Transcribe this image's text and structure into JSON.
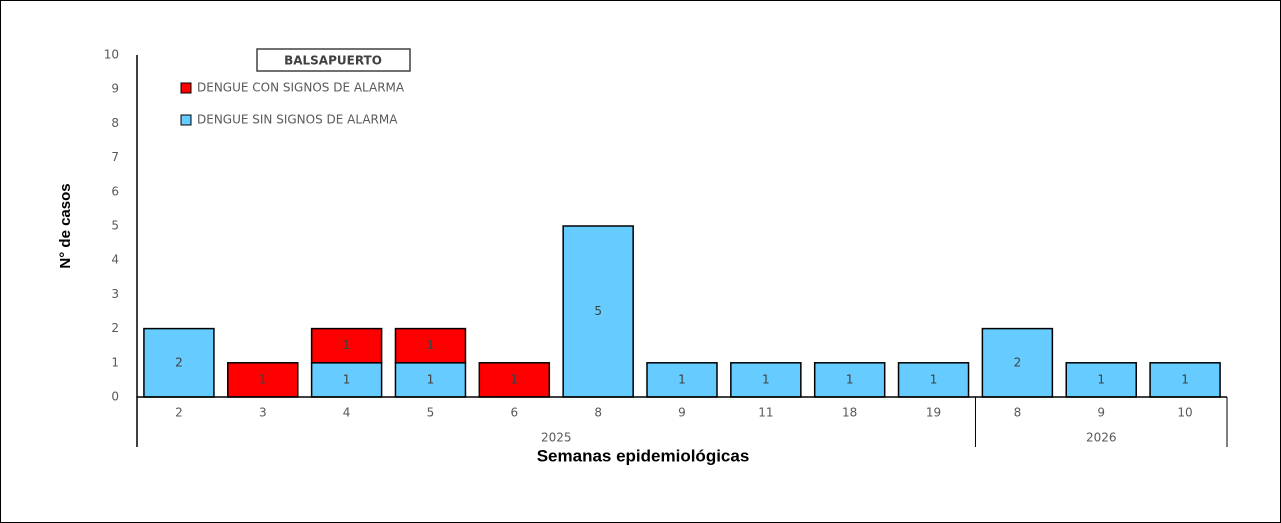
{
  "chart_data": {
    "type": "stacked_bar",
    "title": "BALSAPUERTO",
    "x_label": "Semanas epidemiológicas",
    "y_label": "N° de casos",
    "categories": [
      "2",
      "3",
      "4",
      "5",
      "6",
      "8",
      "9",
      "11",
      "18",
      "19",
      "8",
      "9",
      "10"
    ],
    "groups": [
      {
        "label": "2025",
        "span": 10
      },
      {
        "label": "2026",
        "span": 3
      }
    ],
    "series": [
      {
        "name": "DENGUE SIN SIGNOS DE ALARMA",
        "color": "#66ccff",
        "values": [
          2,
          0,
          1,
          1,
          0,
          5,
          1,
          1,
          1,
          1,
          2,
          1,
          1
        ]
      },
      {
        "name": "DENGUE CON SIGNOS DE ALARMA",
        "color": "#ff0000",
        "values": [
          0,
          1,
          1,
          1,
          1,
          0,
          0,
          0,
          0,
          0,
          0,
          0,
          0
        ]
      }
    ],
    "ylim": [
      0,
      10
    ],
    "yticks": [
      0,
      1,
      2,
      3,
      4,
      5,
      6,
      7,
      8,
      9,
      10
    ],
    "grid": false
  }
}
